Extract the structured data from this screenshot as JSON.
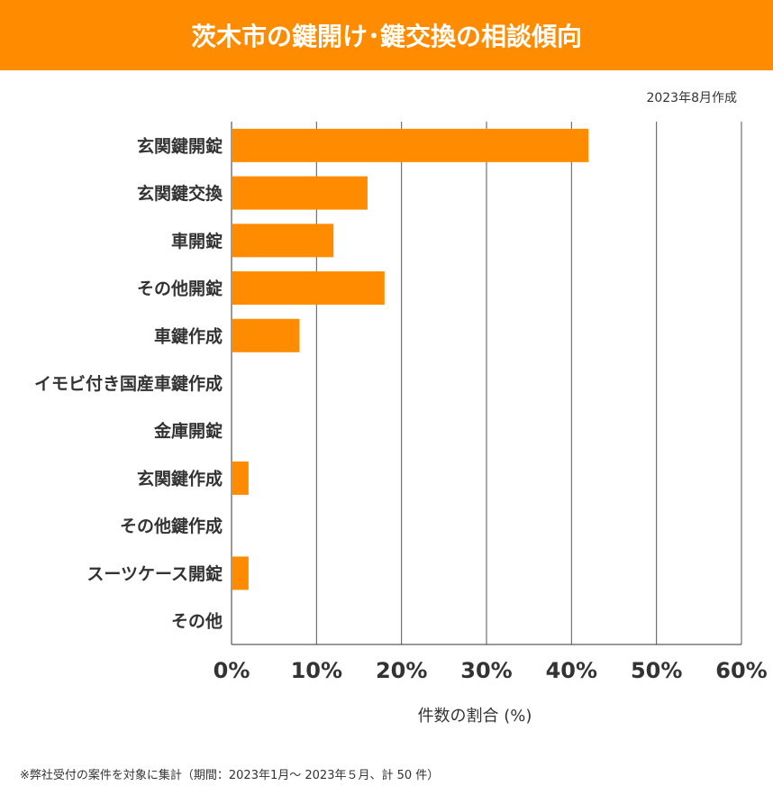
{
  "header": {
    "title": "茨木市の鍵開け･鍵交換の相談傾向"
  },
  "created": "2023年8月作成",
  "footnote": "※弊社受付の案件を対象に集計（期間：2023年1月～ 2023年５月、計 50 件）",
  "chart_data": {
    "type": "bar",
    "orientation": "horizontal",
    "categories": [
      "玄関鍵開錠",
      "玄関鍵交換",
      "車開錠",
      "その他開錠",
      "車鍵作成",
      "イモビ付き国産車鍵作成",
      "金庫開錠",
      "玄関鍵作成",
      "その他鍵作成",
      "スーツケース開錠",
      "その他"
    ],
    "values": [
      42,
      16,
      12,
      18,
      8,
      0,
      0,
      2,
      0,
      2,
      0
    ],
    "xlabel": "件数の割合 (%)",
    "xlim": [
      0,
      60
    ],
    "xticks": [
      "0%",
      "10%",
      "20%",
      "30%",
      "40%",
      "50%",
      "60%"
    ],
    "grid": true,
    "bar_color": "#ff8c00"
  }
}
